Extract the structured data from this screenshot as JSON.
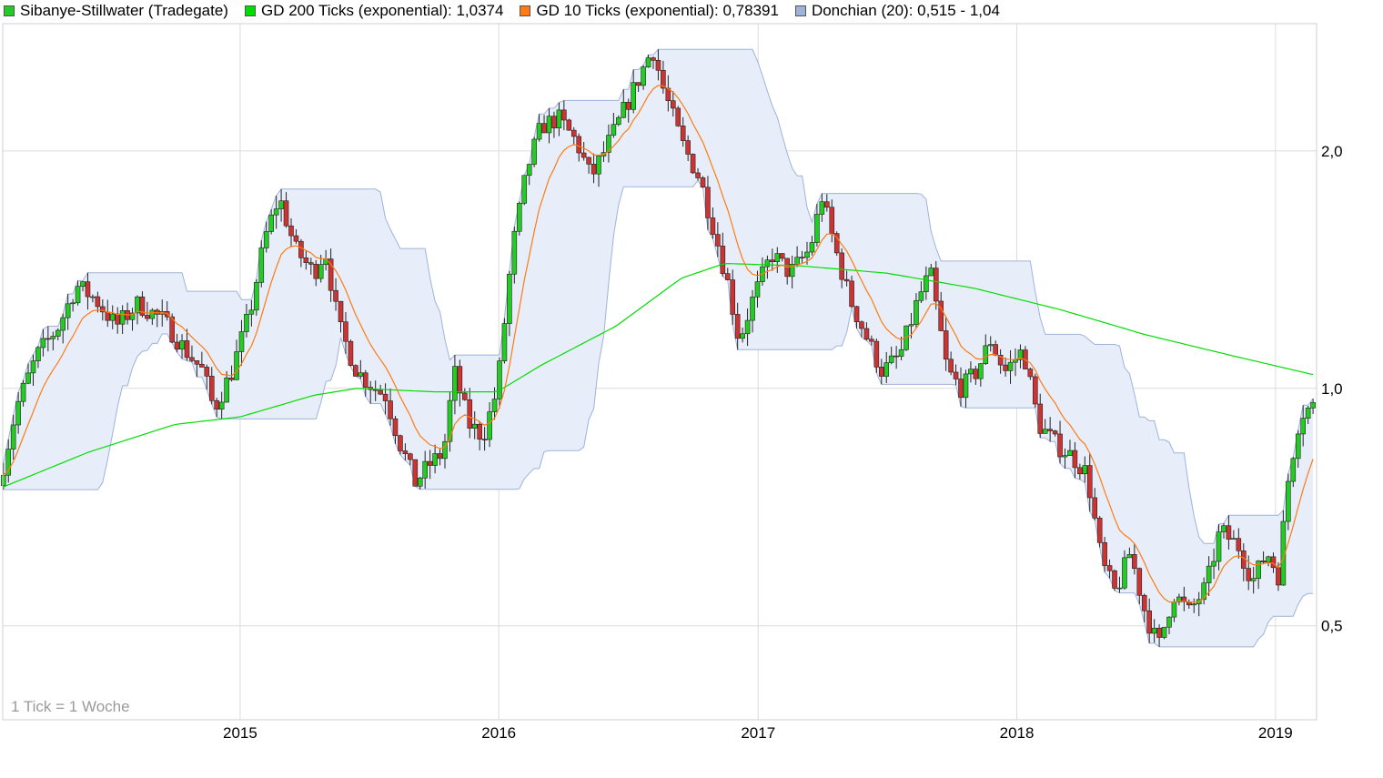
{
  "legend": [
    {
      "label": "Sibanye-Stillwater (Tradegate)",
      "color": "#22cc22"
    },
    {
      "label": "GD 200 Ticks (exponential): 1,0374",
      "color": "#00dd00"
    },
    {
      "label": "GD 10 Ticks (exponential): 0,78391",
      "color": "#ff7a12"
    },
    {
      "label": "Donchian (20): 0,515 - 1,04",
      "color": "#9db3d9"
    }
  ],
  "chart_data": {
    "type": "candlestick",
    "interval_note": "1 Tick = 1 Woche",
    "x_ticks": [
      "2015",
      "2016",
      "2017",
      "2018",
      "2019"
    ],
    "y_ticks": [
      "0,5",
      "1,0",
      "2,0"
    ],
    "y_tick_values": [
      0.5,
      1.0,
      2.0
    ],
    "y_scale": "log",
    "y_range": [
      0.38,
      2.9
    ],
    "x_range": [
      "2014-01-31",
      "2019-02-28"
    ],
    "grid": true,
    "legend_position": "top",
    "colors": {
      "up": "#22cc22",
      "down": "#cc3333",
      "ema200": "#00dd00",
      "ema10": "#ff7a12",
      "donchian_fill": "#e8eef9",
      "donchian_line": "#9db3d9"
    },
    "close_anchors": [
      [
        "2014-02-01",
        0.8
      ],
      [
        "2014-02-20",
        0.95
      ],
      [
        "2014-03-20",
        1.1
      ],
      [
        "2014-04-20",
        1.2
      ],
      [
        "2014-05-15",
        1.35
      ],
      [
        "2014-06-10",
        1.3
      ],
      [
        "2014-07-10",
        1.2
      ],
      [
        "2014-08-10",
        1.28
      ],
      [
        "2014-09-15",
        1.22
      ],
      [
        "2014-10-15",
        1.12
      ],
      [
        "2014-11-10",
        1.05
      ],
      [
        "2014-11-25",
        0.94
      ],
      [
        "2014-12-20",
        1.05
      ],
      [
        "2015-01-15",
        1.25
      ],
      [
        "2015-02-05",
        1.55
      ],
      [
        "2015-02-25",
        1.75
      ],
      [
        "2015-03-20",
        1.5
      ],
      [
        "2015-04-15",
        1.4
      ],
      [
        "2015-05-01",
        1.5
      ],
      [
        "2015-05-20",
        1.2
      ],
      [
        "2015-06-15",
        1.05
      ],
      [
        "2015-07-10",
        1.0
      ],
      [
        "2015-07-25",
        0.98
      ],
      [
        "2015-08-15",
        0.85
      ],
      [
        "2015-09-05",
        0.76
      ],
      [
        "2015-09-25",
        0.8
      ],
      [
        "2015-10-15",
        0.83
      ],
      [
        "2015-10-30",
        1.05
      ],
      [
        "2015-11-20",
        0.9
      ],
      [
        "2015-12-10",
        0.87
      ],
      [
        "2015-12-30",
        1.0
      ],
      [
        "2016-01-20",
        1.5
      ],
      [
        "2016-02-10",
        1.9
      ],
      [
        "2016-03-01",
        2.15
      ],
      [
        "2016-03-25",
        2.2
      ],
      [
        "2016-04-20",
        2.05
      ],
      [
        "2016-05-10",
        1.85
      ],
      [
        "2016-06-10",
        2.1
      ],
      [
        "2016-07-10",
        2.4
      ],
      [
        "2016-08-05",
        2.7
      ],
      [
        "2016-08-20",
        2.4
      ],
      [
        "2016-09-15",
        2.05
      ],
      [
        "2016-10-10",
        1.85
      ],
      [
        "2016-10-30",
        1.6
      ],
      [
        "2016-11-20",
        1.35
      ],
      [
        "2016-12-05",
        1.15
      ],
      [
        "2016-12-25",
        1.3
      ],
      [
        "2017-01-20",
        1.48
      ],
      [
        "2017-02-15",
        1.4
      ],
      [
        "2017-03-15",
        1.5
      ],
      [
        "2017-04-01",
        1.75
      ],
      [
        "2017-04-20",
        1.5
      ],
      [
        "2017-05-10",
        1.3
      ],
      [
        "2017-06-05",
        1.15
      ],
      [
        "2017-06-25",
        1.05
      ],
      [
        "2017-07-20",
        1.1
      ],
      [
        "2017-08-15",
        1.3
      ],
      [
        "2017-09-01",
        1.4
      ],
      [
        "2017-09-25",
        1.05
      ],
      [
        "2017-10-15",
        1.0
      ],
      [
        "2017-11-05",
        1.05
      ],
      [
        "2017-11-25",
        1.15
      ],
      [
        "2017-12-15",
        1.05
      ],
      [
        "2018-01-10",
        1.12
      ],
      [
        "2018-02-01",
        0.9
      ],
      [
        "2018-02-25",
        0.85
      ],
      [
        "2018-03-20",
        0.82
      ],
      [
        "2018-04-10",
        0.78
      ],
      [
        "2018-05-01",
        0.6
      ],
      [
        "2018-05-20",
        0.55
      ],
      [
        "2018-06-10",
        0.62
      ],
      [
        "2018-07-01",
        0.52
      ],
      [
        "2018-07-20",
        0.47
      ],
      [
        "2018-08-10",
        0.55
      ],
      [
        "2018-09-01",
        0.52
      ],
      [
        "2018-09-25",
        0.56
      ],
      [
        "2018-10-15",
        0.66
      ],
      [
        "2018-11-10",
        0.63
      ],
      [
        "2018-11-30",
        0.57
      ],
      [
        "2018-12-20",
        0.62
      ],
      [
        "2019-01-05",
        0.58
      ],
      [
        "2019-01-20",
        0.78
      ],
      [
        "2019-02-05",
        0.93
      ],
      [
        "2019-02-25",
        0.95
      ]
    ],
    "ema200_anchors": [
      [
        "2014-02-01",
        0.75
      ],
      [
        "2014-06-01",
        0.83
      ],
      [
        "2014-10-01",
        0.9
      ],
      [
        "2015-01-01",
        0.92
      ],
      [
        "2015-04-15",
        0.98
      ],
      [
        "2015-06-15",
        1.0
      ],
      [
        "2015-10-01",
        0.99
      ],
      [
        "2015-12-30",
        0.99
      ],
      [
        "2016-03-01",
        1.07
      ],
      [
        "2016-06-15",
        1.2
      ],
      [
        "2016-09-15",
        1.38
      ],
      [
        "2016-11-15",
        1.44
      ],
      [
        "2017-03-01",
        1.43
      ],
      [
        "2017-07-01",
        1.4
      ],
      [
        "2017-11-01",
        1.34
      ],
      [
        "2018-03-01",
        1.26
      ],
      [
        "2018-07-01",
        1.17
      ],
      [
        "2018-11-01",
        1.1
      ],
      [
        "2019-02-25",
        1.04
      ]
    ],
    "series": [
      {
        "name": "Sibanye-Stillwater (Tradegate)"
      },
      {
        "name": "GD 200 Ticks (exponential)",
        "last": "1,0374"
      },
      {
        "name": "GD 10 Ticks (exponential)",
        "last": "0,78391"
      },
      {
        "name": "Donchian (20)",
        "last": "0,515 - 1,04"
      }
    ]
  }
}
